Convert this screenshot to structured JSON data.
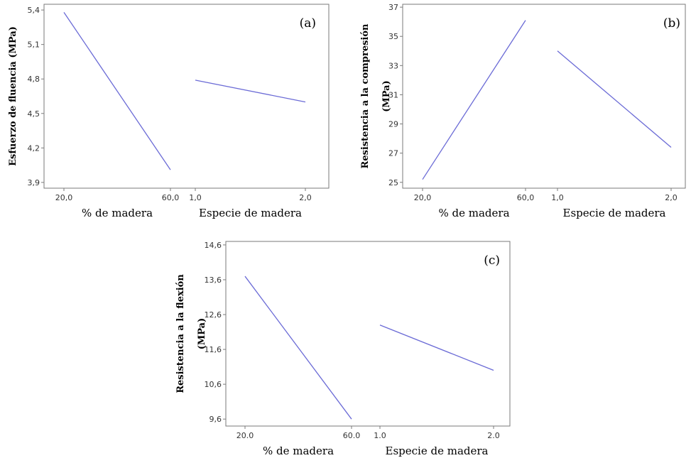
{
  "chart_data": [
    {
      "type": "line",
      "panel_label": "(a)",
      "ylabel": "Esfuerzo de fluencia (MPa)",
      "ylim": [
        3.85,
        5.45
      ],
      "yticks": [
        "3,9",
        "4,2",
        "4,5",
        "4,8",
        "5,1",
        "5,4"
      ],
      "factors": [
        {
          "xlabel": "% de madera",
          "categories": [
            "20,0",
            "60,0"
          ],
          "values": [
            5.38,
            4.01
          ]
        },
        {
          "xlabel": "Especie de madera",
          "categories": [
            "1,0",
            "2,0"
          ],
          "values": [
            4.79,
            4.6
          ]
        }
      ]
    },
    {
      "type": "line",
      "panel_label": "(b)",
      "ylabel": "Resistencia a la compresión (MPa)",
      "ylim": [
        24.6,
        37.2
      ],
      "yticks": [
        "25",
        "27",
        "29",
        "31",
        "33",
        "35",
        "37"
      ],
      "factors": [
        {
          "xlabel": "% de madera",
          "categories": [
            "20,0",
            "60,0"
          ],
          "values": [
            25.2,
            36.1
          ]
        },
        {
          "xlabel": "Especie de madera",
          "categories": [
            "1,0",
            "2,0"
          ],
          "values": [
            34.0,
            27.4
          ]
        }
      ]
    },
    {
      "type": "line",
      "panel_label": "(c)",
      "ylabel": "Resistencia a la flexión (MPa)",
      "ylim": [
        9.4,
        14.7
      ],
      "yticks": [
        "9,6",
        "10,6",
        "11,6",
        "12,6",
        "13,6",
        "14,6"
      ],
      "factors": [
        {
          "xlabel": "% de madera",
          "categories": [
            "20.0",
            "60.0"
          ],
          "values": [
            13.7,
            9.6
          ]
        },
        {
          "xlabel": "Especie de madera",
          "categories": [
            "1.0",
            "2.0"
          ],
          "values": [
            12.3,
            11.0
          ]
        }
      ]
    }
  ]
}
